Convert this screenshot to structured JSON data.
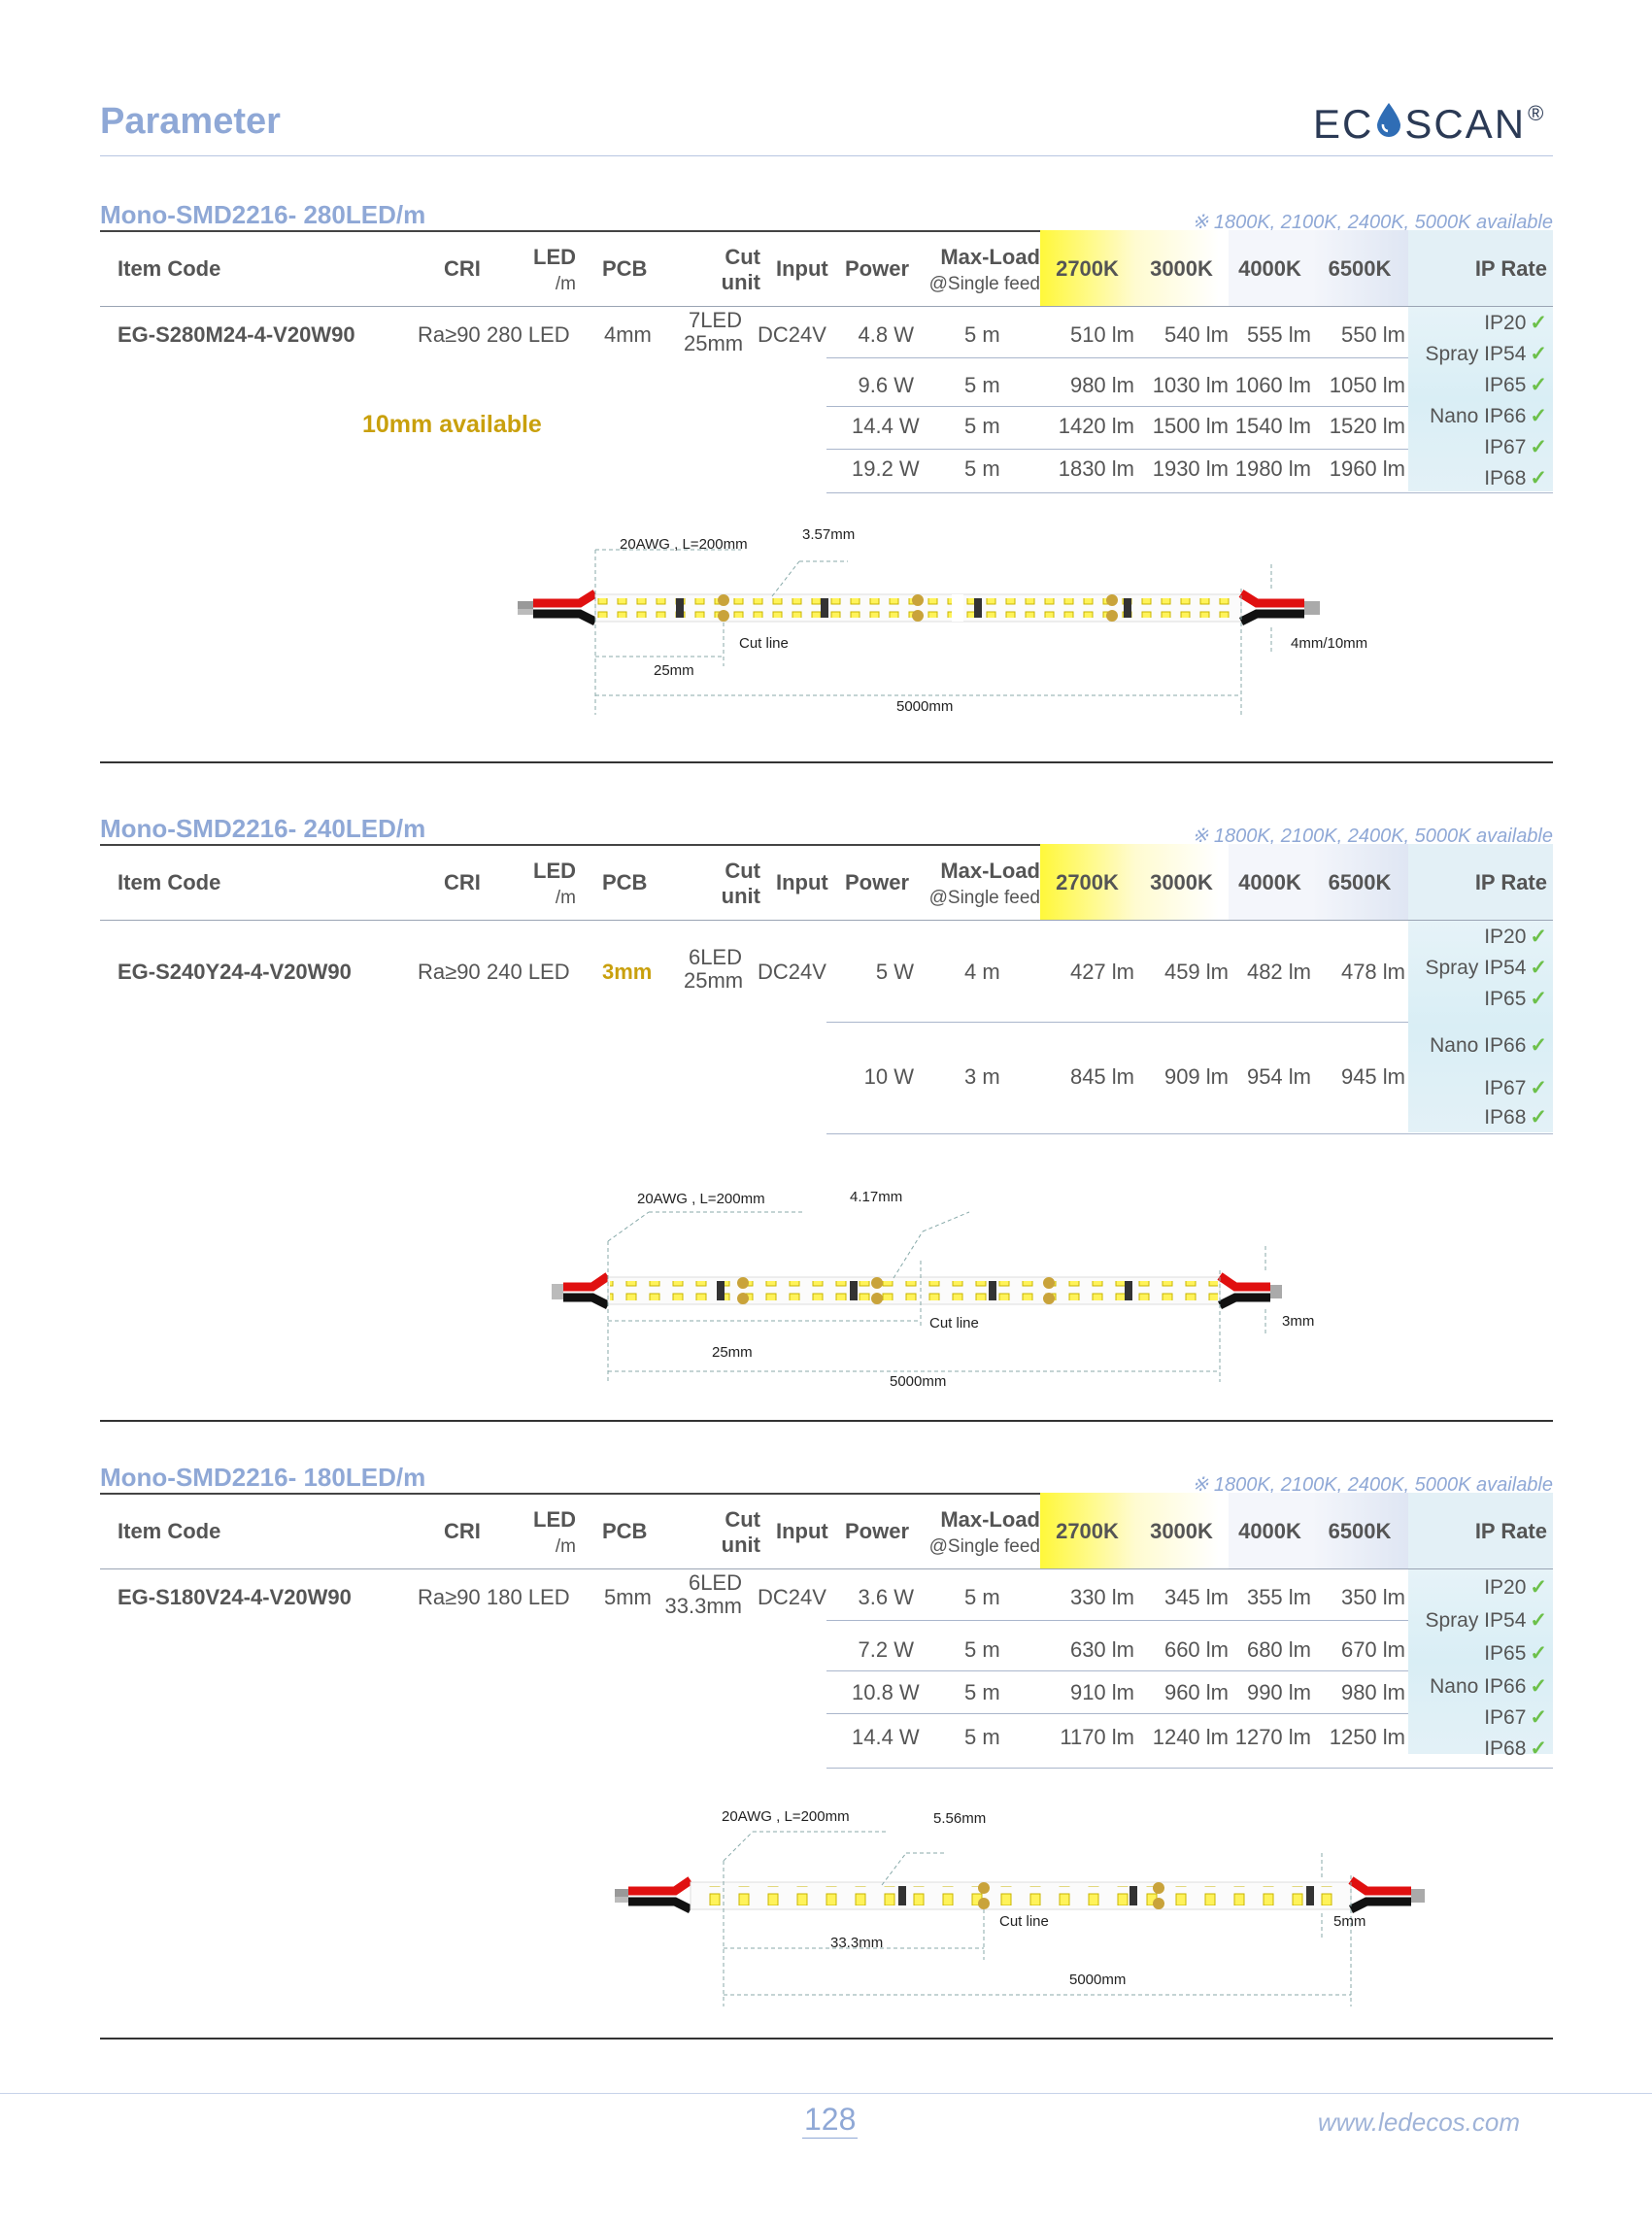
{
  "page": {
    "title": "Parameter",
    "page_number": "128",
    "url": "www.ledecos.com"
  },
  "logo": {
    "left": "EC",
    "right": "SCAN",
    "reg": "®"
  },
  "header_labels": {
    "item_code": "Item Code",
    "cri": "CRI",
    "led": "LED",
    "led_unit": "/m",
    "pcb": "PCB",
    "cut": "Cut",
    "cut_unit": "unit",
    "input": "Input",
    "power": "Power",
    "maxload": "Max-Load",
    "maxload_sub": "@Single feed",
    "k2700": "2700K",
    "k3000": "3000K",
    "k4000": "4000K",
    "k6500": "6500K",
    "ip_rate": "IP Rate"
  },
  "ip_list": {
    "ip20": "IP20",
    "ip54": "Spray IP54",
    "ip65": "IP65",
    "ip66": "Nano IP66",
    "ip67": "IP67",
    "ip68": "IP68",
    "check": "✓"
  },
  "sections": [
    {
      "title": "Mono-SMD2216- 280LED/m",
      "available": "※  1800K, 2100K, 2400K, 5000K available",
      "item_code": "EG-S280M24-4-V20W90",
      "cri": "Ra≥90",
      "led": "280 LED",
      "pcb": "4mm",
      "cut_a": "7LED",
      "cut_b": "25mm",
      "input": "DC24V",
      "note": "10mm available",
      "rows": [
        {
          "power": "4.8 W",
          "max": "5 m",
          "k2700": "510 lm",
          "k3000": "540 lm",
          "k4000": "555 lm",
          "k6500": "550 lm"
        },
        {
          "power": "9.6 W",
          "max": "5 m",
          "k2700": "980 lm",
          "k3000": "1030 lm",
          "k4000": "1060 lm",
          "k6500": "1050 lm"
        },
        {
          "power": "14.4 W",
          "max": "5 m",
          "k2700": "1420 lm",
          "k3000": "1500 lm",
          "k4000": "1540 lm",
          "k6500": "1520 lm"
        },
        {
          "power": "19.2 W",
          "max": "5 m",
          "k2700": "1830 lm",
          "k3000": "1930 lm",
          "k4000": "1980 lm",
          "k6500": "1960 lm"
        }
      ],
      "diagram": {
        "wire": "20AWG , L=200mm",
        "pitch": "3.57mm",
        "cut": "Cut line",
        "width": "4mm/10mm",
        "seg": "25mm",
        "total": "5000mm"
      }
    },
    {
      "title": "Mono-SMD2216- 240LED/m",
      "available": "※  1800K, 2100K, 2400K, 5000K available",
      "item_code": "EG-S240Y24-4-V20W90",
      "cri": "Ra≥90",
      "led": "240 LED",
      "pcb": "3mm",
      "cut_a": "6LED",
      "cut_b": "25mm",
      "input": "DC24V",
      "rows": [
        {
          "power": "5 W",
          "max": "4 m",
          "k2700": "427 lm",
          "k3000": "459 lm",
          "k4000": "482 lm",
          "k6500": "478 lm"
        },
        {
          "power": "10 W",
          "max": "3 m",
          "k2700": "845 lm",
          "k3000": "909 lm",
          "k4000": "954 lm",
          "k6500": "945 lm"
        }
      ],
      "diagram": {
        "wire": "20AWG , L=200mm",
        "pitch": "4.17mm",
        "cut": "Cut line",
        "width": "3mm",
        "seg": "25mm",
        "total": "5000mm"
      }
    },
    {
      "title": "Mono-SMD2216- 180LED/m",
      "available": "※  1800K, 2100K, 2400K, 5000K available",
      "item_code": "EG-S180V24-4-V20W90",
      "cri": "Ra≥90",
      "led": "180 LED",
      "pcb": "5mm",
      "cut_a": "6LED",
      "cut_b": "33.3mm",
      "input": "DC24V",
      "rows": [
        {
          "power": "3.6 W",
          "max": "5 m",
          "k2700": "330 lm",
          "k3000": "345 lm",
          "k4000": "355 lm",
          "k6500": "350 lm"
        },
        {
          "power": "7.2 W",
          "max": "5 m",
          "k2700": "630 lm",
          "k3000": "660 lm",
          "k4000": "680 lm",
          "k6500": "670 lm"
        },
        {
          "power": "10.8 W",
          "max": "5 m",
          "k2700": "910 lm",
          "k3000": "960 lm",
          "k4000": "990 lm",
          "k6500": "980 lm"
        },
        {
          "power": "14.4 W",
          "max": "5 m",
          "k2700": "1170 lm",
          "k3000": "1240 lm",
          "k4000": "1270 lm",
          "k6500": "1250 lm"
        }
      ],
      "diagram": {
        "wire": "20AWG , L=200mm",
        "pitch": "5.56mm",
        "cut": "Cut line",
        "width": "5mm",
        "seg": "33.3mm",
        "total": "5000mm"
      }
    }
  ]
}
